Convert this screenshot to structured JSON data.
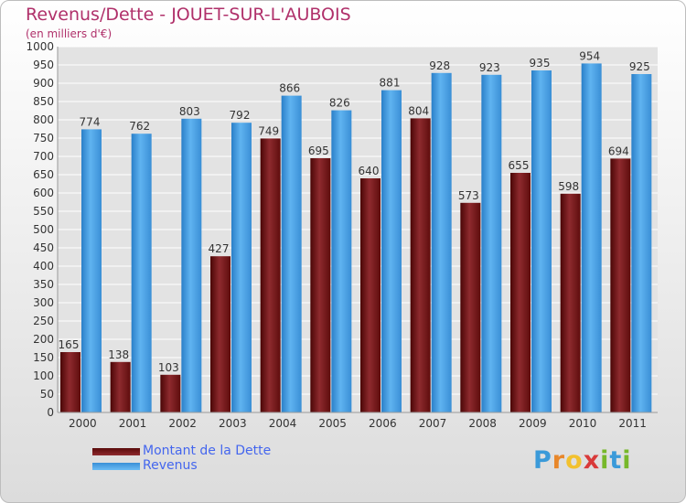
{
  "title": "Revenus/Dette - JOUET-SUR-L'AUBOIS",
  "subtitle": "(en milliers d'€)",
  "brand": {
    "letters": [
      "P",
      "r",
      "o",
      "x",
      "i",
      "t",
      "i"
    ],
    "colors": [
      "#3a9ad9",
      "#e8872a",
      "#f2c12e",
      "#d93a3a",
      "#77b82a",
      "#3a9ad9",
      "#77b82a"
    ]
  },
  "legend": [
    {
      "label": "Montant de la Dette",
      "color": "#6b1010"
    },
    {
      "label": "Revenus",
      "color": "#4aa0e6"
    }
  ],
  "chart_data": {
    "type": "bar",
    "title": "Revenus/Dette - JOUET-SUR-L'AUBOIS",
    "subtitle": "(en milliers d'€)",
    "categories": [
      "2000",
      "2001",
      "2002",
      "2003",
      "2004",
      "2005",
      "2006",
      "2007",
      "2008",
      "2009",
      "2010",
      "2011"
    ],
    "series": [
      {
        "name": "Montant de la Dette",
        "color": "#7d1d22",
        "values": [
          165,
          138,
          103,
          427,
          749,
          695,
          640,
          804,
          573,
          655,
          598,
          694
        ]
      },
      {
        "name": "Revenus",
        "color": "#4aa0e6",
        "values": [
          774,
          762,
          803,
          792,
          866,
          826,
          881,
          928,
          923,
          935,
          954,
          925
        ]
      }
    ],
    "ylim": [
      0,
      1000
    ],
    "ytick_step": 50,
    "grid": true,
    "legend_position": "bottom-left"
  }
}
